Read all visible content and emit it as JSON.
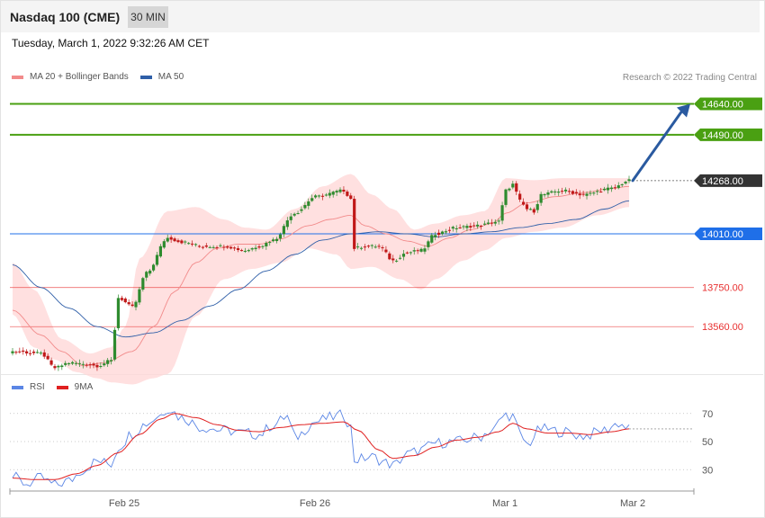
{
  "header": {
    "title": "Nasdaq 100 (CME)",
    "timeframe": "30 MIN"
  },
  "datetime": "Tuesday, March 1, 2022 9:32:26 AM CET",
  "legend_price": [
    {
      "label": "MA 20 + Bollinger Bands",
      "color": "#f28b8b"
    },
    {
      "label": "MA 50",
      "color": "#2f5fa8"
    }
  ],
  "credit": "Research © 2022 Trading Central",
  "legend_rsi": [
    {
      "label": "RSI",
      "color": "#5b86e5"
    },
    {
      "label": "9MA",
      "color": "#e02020"
    }
  ],
  "colors": {
    "resistance": "#4aa012",
    "pivot": "#1f6fe8",
    "support": "#e83030",
    "last_price_tag": "#333333",
    "bb_fill": "#ffd6d6",
    "bull": "#2e8b2e",
    "bear": "#c01818",
    "arrow": "#2a5aa0"
  },
  "chart_data": [
    {
      "type": "candlestick",
      "title": "Nasdaq 100 (CME)",
      "interval": "30 MIN",
      "x_labels": [
        "Feb 25",
        "Feb 26",
        "Mar 1",
        "Mar 2"
      ],
      "ylim": [
        13330,
        14760
      ],
      "levels": [
        {
          "value": 14640.0,
          "label": "14640.00",
          "kind": "resistance"
        },
        {
          "value": 14490.0,
          "label": "14490.00",
          "kind": "resistance"
        },
        {
          "value": 14268.0,
          "label": "14268.00",
          "kind": "last"
        },
        {
          "value": 14010.0,
          "label": "14010.00",
          "kind": "pivot"
        },
        {
          "value": 13750.0,
          "label": "13750.00",
          "kind": "support"
        },
        {
          "value": 13560.0,
          "label": "13560.00",
          "kind": "support"
        }
      ],
      "projection": {
        "from": 14268,
        "to": 14640
      },
      "price_anchors": [
        [
          0,
          13440
        ],
        [
          8,
          13430
        ],
        [
          12,
          13360
        ],
        [
          16,
          13385
        ],
        [
          20,
          13380
        ],
        [
          24,
          13370
        ],
        [
          28,
          13395
        ],
        [
          30,
          13700
        ],
        [
          34,
          13655
        ],
        [
          38,
          13820
        ],
        [
          44,
          13990
        ],
        [
          48,
          13970
        ],
        [
          54,
          13950
        ],
        [
          60,
          13950
        ],
        [
          66,
          13930
        ],
        [
          70,
          13950
        ],
        [
          74,
          13980
        ],
        [
          80,
          14110
        ],
        [
          86,
          14190
        ],
        [
          94,
          14220
        ],
        [
          96,
          14180
        ],
        [
          97,
          13940
        ],
        [
          100,
          13950
        ],
        [
          104,
          13950
        ],
        [
          108,
          13880
        ],
        [
          112,
          13920
        ],
        [
          116,
          13930
        ],
        [
          120,
          14010
        ],
        [
          126,
          14040
        ],
        [
          132,
          14050
        ],
        [
          138,
          14070
        ],
        [
          140,
          14220
        ],
        [
          142,
          14250
        ],
        [
          144,
          14170
        ],
        [
          146,
          14130
        ],
        [
          148,
          14120
        ],
        [
          150,
          14200
        ],
        [
          156,
          14220
        ],
        [
          162,
          14200
        ],
        [
          170,
          14230
        ],
        [
          175,
          14268
        ]
      ],
      "bb_upper_anchors": [
        [
          0,
          13870
        ],
        [
          6,
          13740
        ],
        [
          14,
          13500
        ],
        [
          22,
          13430
        ],
        [
          28,
          13460
        ],
        [
          32,
          13560
        ],
        [
          36,
          13890
        ],
        [
          44,
          14120
        ],
        [
          52,
          14140
        ],
        [
          60,
          14080
        ],
        [
          66,
          14040
        ],
        [
          72,
          14030
        ],
        [
          80,
          14130
        ],
        [
          88,
          14240
        ],
        [
          96,
          14300
        ],
        [
          102,
          14200
        ],
        [
          108,
          14130
        ],
        [
          114,
          14030
        ],
        [
          120,
          14060
        ],
        [
          128,
          14100
        ],
        [
          134,
          14120
        ],
        [
          140,
          14280
        ],
        [
          148,
          14270
        ],
        [
          156,
          14280
        ],
        [
          166,
          14280
        ],
        [
          175,
          14280
        ]
      ],
      "bb_lower_anchors": [
        [
          0,
          13620
        ],
        [
          6,
          13460
        ],
        [
          12,
          13400
        ],
        [
          18,
          13340
        ],
        [
          24,
          13310
        ],
        [
          28,
          13290
        ],
        [
          34,
          13280
        ],
        [
          40,
          13310
        ],
        [
          44,
          13330
        ],
        [
          52,
          13610
        ],
        [
          60,
          13790
        ],
        [
          68,
          13840
        ],
        [
          76,
          13870
        ],
        [
          84,
          13940
        ],
        [
          92,
          13910
        ],
        [
          96,
          13840
        ],
        [
          102,
          13850
        ],
        [
          110,
          13790
        ],
        [
          116,
          13740
        ],
        [
          120,
          13790
        ],
        [
          128,
          13880
        ],
        [
          134,
          13930
        ],
        [
          140,
          13990
        ],
        [
          148,
          14020
        ],
        [
          156,
          14040
        ],
        [
          166,
          14100
        ],
        [
          175,
          14140
        ]
      ],
      "ma20_anchors": [
        [
          0,
          13640
        ],
        [
          8,
          13520
        ],
        [
          14,
          13440
        ],
        [
          20,
          13370
        ],
        [
          26,
          13385
        ],
        [
          34,
          13440
        ],
        [
          40,
          13560
        ],
        [
          46,
          13730
        ],
        [
          52,
          13870
        ],
        [
          58,
          13940
        ],
        [
          64,
          13960
        ],
        [
          70,
          13960
        ],
        [
          76,
          13985
        ],
        [
          84,
          14050
        ],
        [
          90,
          14080
        ],
        [
          96,
          14100
        ],
        [
          100,
          14050
        ],
        [
          106,
          14010
        ],
        [
          112,
          13975
        ],
        [
          118,
          13950
        ],
        [
          124,
          13990
        ],
        [
          130,
          14030
        ],
        [
          136,
          14060
        ],
        [
          140,
          14110
        ],
        [
          146,
          14160
        ],
        [
          154,
          14190
        ],
        [
          162,
          14210
        ],
        [
          170,
          14230
        ],
        [
          175,
          14240
        ]
      ],
      "ma50_anchors": [
        [
          0,
          13860
        ],
        [
          8,
          13750
        ],
        [
          16,
          13650
        ],
        [
          24,
          13560
        ],
        [
          32,
          13510
        ],
        [
          40,
          13530
        ],
        [
          48,
          13590
        ],
        [
          56,
          13660
        ],
        [
          64,
          13740
        ],
        [
          72,
          13830
        ],
        [
          80,
          13910
        ],
        [
          88,
          13980
        ],
        [
          96,
          14010
        ],
        [
          104,
          14020
        ],
        [
          112,
          14010
        ],
        [
          120,
          13995
        ],
        [
          128,
          14010
        ],
        [
          136,
          14020
        ],
        [
          144,
          14040
        ],
        [
          152,
          14060
        ],
        [
          160,
          14080
        ],
        [
          168,
          14130
        ],
        [
          175,
          14170
        ]
      ],
      "bar_count": 176
    },
    {
      "type": "line",
      "title": "RSI",
      "series_names": [
        "RSI",
        "9MA"
      ],
      "yticks": [
        30,
        50,
        70
      ],
      "rsi_anchors": [
        [
          0,
          25
        ],
        [
          4,
          20
        ],
        [
          8,
          24
        ],
        [
          12,
          19
        ],
        [
          16,
          22
        ],
        [
          20,
          30
        ],
        [
          24,
          36
        ],
        [
          28,
          34
        ],
        [
          30,
          46
        ],
        [
          34,
          56
        ],
        [
          38,
          63
        ],
        [
          42,
          69
        ],
        [
          44,
          74
        ],
        [
          48,
          67
        ],
        [
          54,
          60
        ],
        [
          60,
          58
        ],
        [
          66,
          56
        ],
        [
          70,
          55
        ],
        [
          74,
          62
        ],
        [
          78,
          68
        ],
        [
          80,
          53
        ],
        [
          86,
          64
        ],
        [
          90,
          67
        ],
        [
          94,
          69
        ],
        [
          96,
          60
        ],
        [
          97,
          37
        ],
        [
          102,
          39
        ],
        [
          106,
          35
        ],
        [
          108,
          33
        ],
        [
          112,
          41
        ],
        [
          116,
          44
        ],
        [
          120,
          49
        ],
        [
          126,
          50
        ],
        [
          132,
          53
        ],
        [
          136,
          58
        ],
        [
          140,
          69
        ],
        [
          142,
          68
        ],
        [
          144,
          55
        ],
        [
          146,
          48
        ],
        [
          150,
          59
        ],
        [
          156,
          57
        ],
        [
          162,
          54
        ],
        [
          168,
          58
        ],
        [
          172,
          63
        ],
        [
          175,
          59
        ]
      ],
      "ma9_anchors": [
        [
          0,
          24
        ],
        [
          6,
          23
        ],
        [
          12,
          23
        ],
        [
          18,
          27
        ],
        [
          24,
          33
        ],
        [
          30,
          42
        ],
        [
          36,
          55
        ],
        [
          42,
          66
        ],
        [
          46,
          70
        ],
        [
          52,
          67
        ],
        [
          58,
          62
        ],
        [
          64,
          58
        ],
        [
          70,
          57
        ],
        [
          76,
          60
        ],
        [
          82,
          62
        ],
        [
          88,
          63
        ],
        [
          94,
          64
        ],
        [
          98,
          58
        ],
        [
          104,
          44
        ],
        [
          108,
          38
        ],
        [
          114,
          40
        ],
        [
          120,
          46
        ],
        [
          126,
          51
        ],
        [
          132,
          53
        ],
        [
          138,
          57
        ],
        [
          142,
          63
        ],
        [
          146,
          59
        ],
        [
          152,
          56
        ],
        [
          158,
          56
        ],
        [
          164,
          55
        ],
        [
          170,
          57
        ],
        [
          175,
          59
        ]
      ],
      "last_rsi": 59
    }
  ]
}
